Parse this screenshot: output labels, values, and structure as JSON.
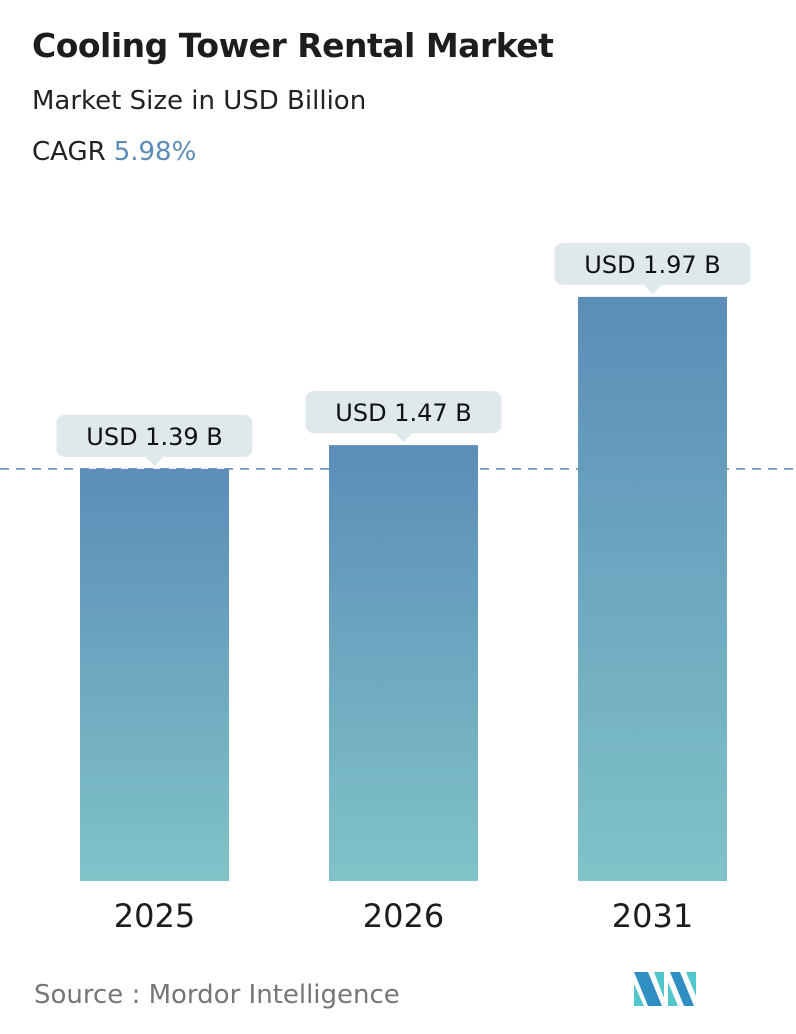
{
  "title": "Cooling Tower Rental Market",
  "subtitle": "Market Size in USD Billion",
  "cagr_label": "CAGR",
  "cagr_value": "5.98%",
  "source": "Source :  Mordor Intelligence",
  "colors": {
    "bar_top": "#5b8db8",
    "bar_bottom": "#80c3c8",
    "label_bg": "#dfe9ec",
    "dashed_line": "#5d87ad",
    "accent": "#5b8db8"
  },
  "chart_data": {
    "type": "bar",
    "categories": [
      "2025",
      "2026",
      "2031"
    ],
    "values": [
      1.39,
      1.47,
      1.97
    ],
    "data_labels": [
      "USD 1.39 B",
      "USD 1.47 B",
      "USD 1.97 B"
    ],
    "reference_line": 1.39,
    "grid": false,
    "xlabel": "",
    "ylabel": ""
  }
}
